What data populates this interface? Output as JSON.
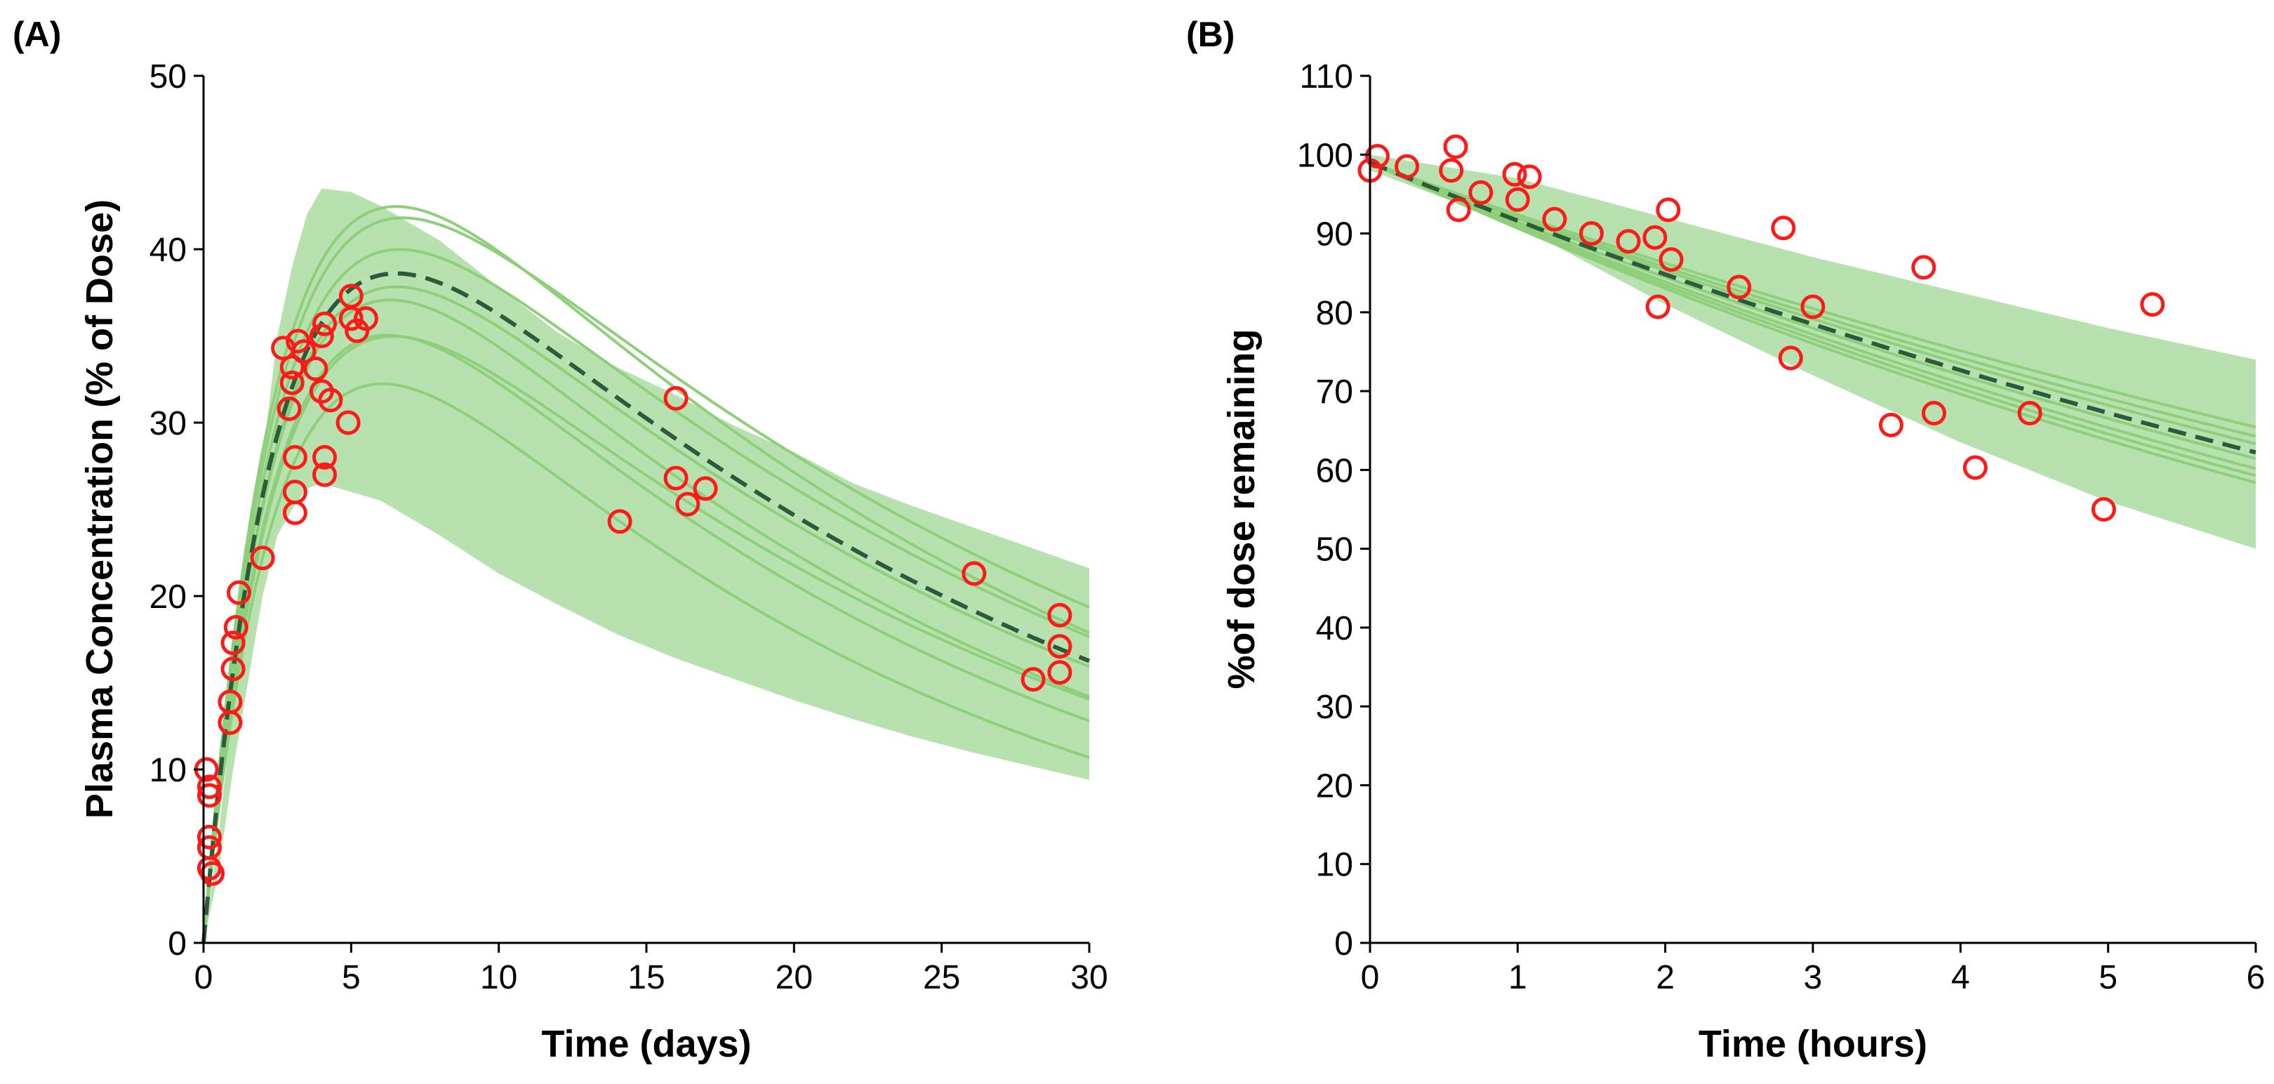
{
  "colors": {
    "band": "#b7e2af",
    "sim_line": "#8fcf7b",
    "mean_line": "#2d5a3a",
    "observed": "#ff1a1a",
    "axis": "#000000"
  },
  "chart_data": [
    {
      "panel": "A",
      "panel_label": "(A)",
      "type": "line",
      "xlabel": "Time (days)",
      "ylabel": "Plasma Concentration (% of Dose)",
      "xlim": [
        0,
        30
      ],
      "ylim": [
        0,
        50
      ],
      "xticks": [
        0,
        5,
        10,
        15,
        20,
        25,
        30
      ],
      "yticks": [
        0,
        10,
        20,
        30,
        40,
        50
      ],
      "model": {
        "kind": "oral",
        "ka": 0.38,
        "ke": 0.0418,
        "amp": 56.98
      },
      "band": {
        "upper": [
          [
            0,
            0
          ],
          [
            0.5,
            6
          ],
          [
            1,
            14
          ],
          [
            1.5,
            21
          ],
          [
            2,
            28
          ],
          [
            2.5,
            35
          ],
          [
            3,
            39
          ],
          [
            3.5,
            42
          ],
          [
            4,
            43.5
          ],
          [
            5,
            43.3
          ],
          [
            6,
            42.5
          ],
          [
            8,
            40.5
          ],
          [
            10,
            37.8
          ],
          [
            12,
            35.2
          ],
          [
            14,
            33.2
          ],
          [
            16,
            31.6
          ],
          [
            18,
            29.8
          ],
          [
            20,
            28.3
          ],
          [
            22,
            26.5
          ],
          [
            24,
            25.2
          ],
          [
            26,
            24
          ],
          [
            28,
            22.8
          ],
          [
            30,
            21.6
          ]
        ],
        "lower": [
          [
            0,
            0
          ],
          [
            0.5,
            4
          ],
          [
            1,
            10
          ],
          [
            1.5,
            15
          ],
          [
            2,
            20
          ],
          [
            2.5,
            23.5
          ],
          [
            3,
            25
          ],
          [
            3.5,
            26.2
          ],
          [
            4,
            26.5
          ],
          [
            5,
            26
          ],
          [
            6,
            25.5
          ],
          [
            8,
            23.5
          ],
          [
            10,
            21.3
          ],
          [
            12,
            19.5
          ],
          [
            14,
            17.8
          ],
          [
            16,
            16.4
          ],
          [
            18,
            15.2
          ],
          [
            20,
            14
          ],
          [
            22,
            12.9
          ],
          [
            24,
            11.9
          ],
          [
            26,
            11
          ],
          [
            28,
            10.2
          ],
          [
            30,
            9.4
          ]
        ]
      },
      "simulations": [
        {
          "scale": 1.1,
          "ke_scale": 1.0
        },
        {
          "scale": 1.05,
          "ke_scale": 0.9
        },
        {
          "scale": 1.02,
          "ke_scale": 0.95
        },
        {
          "scale": 0.99,
          "ke_scale": 1.1
        },
        {
          "scale": 0.98,
          "ke_scale": 1.0
        },
        {
          "scale": 0.95,
          "ke_scale": 1.15
        },
        {
          "scale": 0.92,
          "ke_scale": 1.05
        },
        {
          "scale": 0.9,
          "ke_scale": 1.25
        }
      ],
      "observed": [
        [
          0.1,
          10
        ],
        [
          0.2,
          9
        ],
        [
          0.2,
          8.5
        ],
        [
          0.2,
          6.1
        ],
        [
          0.2,
          5.5
        ],
        [
          0.2,
          4.3
        ],
        [
          0.3,
          4
        ],
        [
          0.9,
          12.7
        ],
        [
          0.9,
          13.9
        ],
        [
          1.0,
          15.8
        ],
        [
          1.0,
          17.3
        ],
        [
          1.1,
          18.2
        ],
        [
          1.2,
          20.2
        ],
        [
          2.0,
          22.2
        ],
        [
          2.7,
          34.3
        ],
        [
          2.9,
          30.8
        ],
        [
          3.0,
          33.2
        ],
        [
          3.0,
          32.3
        ],
        [
          3.1,
          28
        ],
        [
          3.1,
          26
        ],
        [
          3.1,
          24.8
        ],
        [
          3.2,
          34.7
        ],
        [
          3.4,
          34.1
        ],
        [
          3.8,
          33.1
        ],
        [
          4.0,
          31.8
        ],
        [
          4.0,
          35
        ],
        [
          4.1,
          35.7
        ],
        [
          4.1,
          28
        ],
        [
          4.1,
          27
        ],
        [
          4.3,
          31.3
        ],
        [
          4.9,
          30
        ],
        [
          5.0,
          37.3
        ],
        [
          5.0,
          36
        ],
        [
          5.2,
          35.3
        ],
        [
          5.5,
          36
        ],
        [
          14.1,
          24.3
        ],
        [
          16.0,
          31.4
        ],
        [
          16.0,
          26.8
        ],
        [
          16.4,
          25.3
        ],
        [
          17.0,
          26.2
        ],
        [
          26.1,
          21.3
        ],
        [
          28.1,
          15.2
        ],
        [
          29.0,
          18.9
        ],
        [
          29.0,
          17.1
        ],
        [
          29.0,
          15.6
        ]
      ]
    },
    {
      "panel": "B",
      "panel_label": "(B)",
      "type": "line",
      "xlabel": "Time (hours)",
      "ylabel": "%of dose remaining",
      "xlim": [
        0,
        6
      ],
      "ylim": [
        0,
        110
      ],
      "xticks": [
        0,
        1,
        2,
        3,
        4,
        5,
        6
      ],
      "yticks": [
        0,
        10,
        20,
        30,
        40,
        50,
        60,
        70,
        80,
        90,
        100,
        110
      ],
      "model": {
        "kind": "decay",
        "start": 99,
        "k": 0.0774
      },
      "band": {
        "upper": [
          [
            0,
            100
          ],
          [
            1,
            97
          ],
          [
            2,
            92
          ],
          [
            3,
            87
          ],
          [
            4,
            82.5
          ],
          [
            5,
            78
          ],
          [
            6,
            74
          ]
        ],
        "lower": [
          [
            0,
            98
          ],
          [
            1,
            91
          ],
          [
            2,
            81
          ],
          [
            3,
            72
          ],
          [
            4,
            63.5
          ],
          [
            5,
            56
          ],
          [
            6,
            50
          ]
        ]
      },
      "simulations": [
        {
          "start": 99,
          "k": 0.069
        },
        {
          "start": 99,
          "k": 0.072
        },
        {
          "start": 99,
          "k": 0.0745
        },
        {
          "start": 99,
          "k": 0.0795
        },
        {
          "start": 99,
          "k": 0.083
        },
        {
          "start": 99,
          "k": 0.0855
        },
        {
          "start": 99,
          "k": 0.088
        }
      ],
      "observed": [
        [
          0.0,
          98
        ],
        [
          0.05,
          99.8
        ],
        [
          0.25,
          98.5
        ],
        [
          0.55,
          98
        ],
        [
          0.58,
          101
        ],
        [
          0.6,
          93
        ],
        [
          0.75,
          95.2
        ],
        [
          0.98,
          97.5
        ],
        [
          1.0,
          94.3
        ],
        [
          1.08,
          97.2
        ],
        [
          1.25,
          91.8
        ],
        [
          1.5,
          90
        ],
        [
          1.75,
          89
        ],
        [
          1.93,
          89.5
        ],
        [
          1.95,
          80.7
        ],
        [
          2.02,
          93
        ],
        [
          2.04,
          86.7
        ],
        [
          2.5,
          83.2
        ],
        [
          2.8,
          90.7
        ],
        [
          2.85,
          74.2
        ],
        [
          3.0,
          80.7
        ],
        [
          3.53,
          65.7
        ],
        [
          3.75,
          85.7
        ],
        [
          3.82,
          67.2
        ],
        [
          4.1,
          60.3
        ],
        [
          4.47,
          67.2
        ],
        [
          4.97,
          55
        ],
        [
          5.3,
          81
        ]
      ]
    }
  ]
}
